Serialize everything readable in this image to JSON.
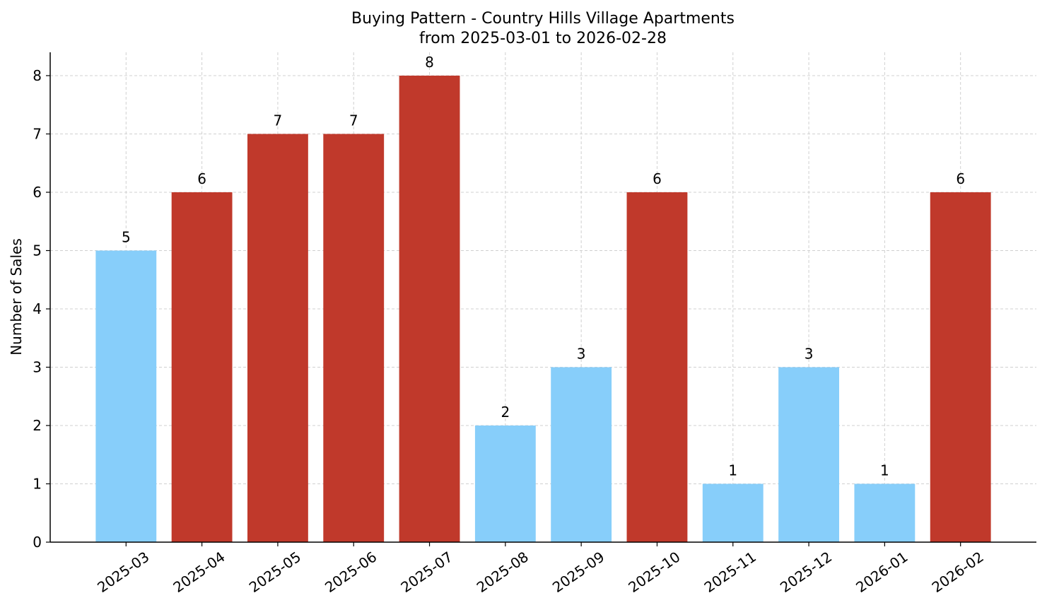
{
  "chart_data": {
    "type": "bar",
    "title": "Buying Pattern - Country Hills Village Apartments",
    "subtitle": "from 2025-03-01 to 2026-02-28",
    "y_label": "Number of Sales",
    "categories": [
      "2025-03",
      "2025-04",
      "2025-05",
      "2025-06",
      "2025-07",
      "2025-08",
      "2025-09",
      "2025-10",
      "2025-11",
      "2025-12",
      "2026-01",
      "2026-02"
    ],
    "values": [
      5,
      6,
      7,
      7,
      8,
      2,
      3,
      6,
      1,
      3,
      1,
      6
    ],
    "colors": [
      "#87cefa",
      "#c0392b",
      "#c0392b",
      "#c0392b",
      "#c0392b",
      "#87cefa",
      "#87cefa",
      "#c0392b",
      "#87cefa",
      "#87cefa",
      "#87cefa",
      "#c0392b"
    ],
    "ylim": [
      0,
      8.4
    ],
    "yticks": [
      0,
      1,
      2,
      3,
      4,
      5,
      6,
      7,
      8
    ],
    "grid": true
  }
}
